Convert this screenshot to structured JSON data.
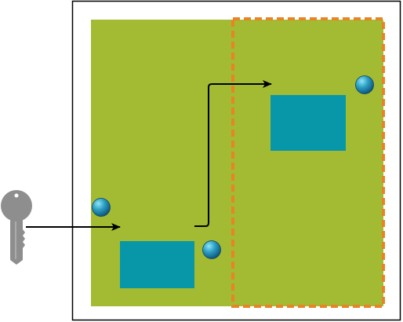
{
  "colors": {
    "frame_border": "#000000",
    "board": "#a2bb32",
    "component": "#0797a8",
    "highlight_dash": "#e98325",
    "arrow": "#000000",
    "key": "#8e8e8e",
    "sphere_light": "#8fe6f7",
    "sphere_mid": "#2d9fc4",
    "sphere_dark": "#0d4f78"
  },
  "diagram": {
    "key_icon": "key-icon",
    "sphere_icon": "sphere-icon",
    "connector": "elbow-arrow"
  }
}
